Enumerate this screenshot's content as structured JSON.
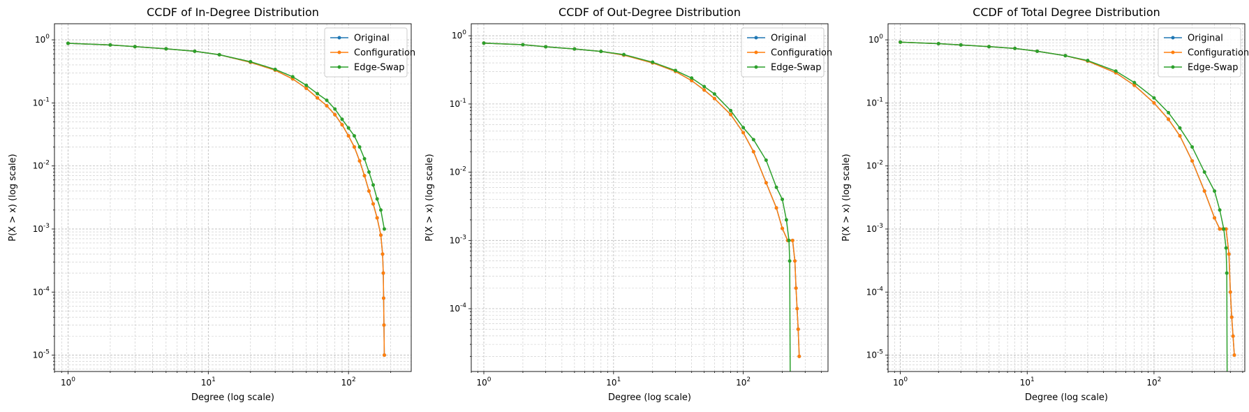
{
  "figure": {
    "panels": [
      {
        "title": "CCDF of In-Degree Distribution",
        "xlabel": "Degree (log scale)",
        "ylabel": "P(X > x) (log scale)"
      },
      {
        "title": "CCDF of Out-Degree Distribution",
        "xlabel": "Degree (log scale)",
        "ylabel": "P(X > x) (log scale)"
      },
      {
        "title": "CCDF of Total Degree Distribution",
        "xlabel": "Degree (log scale)",
        "ylabel": "P(X > x) (log scale)"
      }
    ]
  },
  "colors": {
    "Original": "#1f77b4",
    "Configuration": "#ff7f0e",
    "Edge-Swap": "#2ca02c",
    "grid": "#b0b0b0"
  },
  "chart_data": [
    {
      "type": "line",
      "title": "CCDF of In-Degree Distribution",
      "xlabel": "Degree (log scale)",
      "ylabel": "P(X > x) (log scale)",
      "xscale": "log",
      "yscale": "log",
      "xlim": [
        0.8,
        280
      ],
      "ylim": [
        5.5e-06,
        1.8
      ],
      "xticks": [
        1,
        10,
        100
      ],
      "yticks": [
        1e-05,
        0.0001,
        0.001,
        0.01,
        0.1,
        1
      ],
      "grid": true,
      "legend": "top-right",
      "series": [
        {
          "name": "Original",
          "x": [
            1,
            2,
            3,
            5,
            8,
            12,
            20,
            30,
            40,
            50,
            60,
            70,
            80,
            90,
            100,
            110,
            120,
            130,
            140,
            150,
            160,
            170,
            175,
            177,
            178,
            179,
            180
          ],
          "y": [
            0.88,
            0.83,
            0.78,
            0.72,
            0.66,
            0.58,
            0.44,
            0.33,
            0.24,
            0.17,
            0.12,
            0.09,
            0.065,
            0.045,
            0.03,
            0.02,
            0.012,
            0.007,
            0.004,
            0.0025,
            0.0015,
            0.0008,
            0.0004,
            0.0002,
            8e-05,
            3e-05,
            1e-05
          ]
        },
        {
          "name": "Configuration",
          "x": [
            1,
            2,
            3,
            5,
            8,
            12,
            20,
            30,
            40,
            50,
            60,
            70,
            80,
            90,
            100,
            110,
            120,
            130,
            140,
            150,
            160,
            170,
            175,
            177,
            178,
            179,
            180
          ],
          "y": [
            0.88,
            0.83,
            0.78,
            0.72,
            0.66,
            0.58,
            0.44,
            0.33,
            0.24,
            0.17,
            0.12,
            0.09,
            0.065,
            0.045,
            0.03,
            0.02,
            0.012,
            0.007,
            0.004,
            0.0025,
            0.0015,
            0.0008,
            0.0004,
            0.0002,
            8e-05,
            3e-05,
            1e-05
          ]
        },
        {
          "name": "Edge-Swap",
          "x": [
            1,
            2,
            3,
            5,
            8,
            12,
            20,
            30,
            40,
            50,
            60,
            70,
            80,
            90,
            100,
            110,
            120,
            130,
            140,
            150,
            160,
            170,
            180
          ],
          "y": [
            0.88,
            0.83,
            0.78,
            0.72,
            0.66,
            0.58,
            0.45,
            0.34,
            0.26,
            0.19,
            0.14,
            0.11,
            0.08,
            0.055,
            0.04,
            0.03,
            0.02,
            0.013,
            0.008,
            0.005,
            0.003,
            0.002,
            0.001
          ]
        }
      ]
    },
    {
      "type": "line",
      "title": "CCDF of Out-Degree Distribution",
      "xlabel": "Degree (log scale)",
      "ylabel": "P(X > x) (log scale)",
      "xscale": "log",
      "yscale": "log",
      "xlim": [
        0.8,
        450
      ],
      "ylim": [
        1.2e-05,
        1.5
      ],
      "xticks": [
        1,
        10,
        100
      ],
      "yticks": [
        0.0001,
        0.001,
        0.01,
        0.1,
        1
      ],
      "grid": true,
      "legend": "top-right",
      "series": [
        {
          "name": "Original",
          "x": [
            1,
            2,
            3,
            5,
            8,
            12,
            20,
            30,
            40,
            50,
            60,
            80,
            100,
            120,
            150,
            180,
            200,
            220,
            240,
            250,
            255,
            260,
            265,
            270
          ],
          "y": [
            0.78,
            0.74,
            0.69,
            0.64,
            0.59,
            0.52,
            0.4,
            0.3,
            0.22,
            0.16,
            0.12,
            0.07,
            0.038,
            0.02,
            0.007,
            0.003,
            0.0015,
            0.001,
            0.001,
            0.0005,
            0.0002,
            0.0001,
            5e-05,
            2e-05
          ]
        },
        {
          "name": "Configuration",
          "x": [
            1,
            2,
            3,
            5,
            8,
            12,
            20,
            30,
            40,
            50,
            60,
            80,
            100,
            120,
            150,
            180,
            200,
            220,
            240,
            250,
            255,
            260,
            265,
            270
          ],
          "y": [
            0.78,
            0.74,
            0.69,
            0.64,
            0.59,
            0.52,
            0.4,
            0.3,
            0.22,
            0.16,
            0.12,
            0.07,
            0.038,
            0.02,
            0.007,
            0.003,
            0.0015,
            0.001,
            0.001,
            0.0005,
            0.0002,
            0.0001,
            5e-05,
            2e-05
          ]
        },
        {
          "name": "Edge-Swap",
          "x": [
            1,
            2,
            3,
            5,
            8,
            12,
            20,
            30,
            40,
            50,
            60,
            80,
            100,
            120,
            150,
            180,
            200,
            215,
            225,
            228,
            230
          ],
          "y": [
            0.78,
            0.74,
            0.69,
            0.64,
            0.59,
            0.53,
            0.41,
            0.31,
            0.24,
            0.18,
            0.14,
            0.08,
            0.045,
            0.03,
            0.015,
            0.006,
            0.004,
            0.002,
            0.001,
            0.0005,
            1e-05
          ]
        }
      ]
    },
    {
      "type": "line",
      "title": "CCDF of Total Degree Distribution",
      "xlabel": "Degree (log scale)",
      "ylabel": "P(X > x) (log scale)",
      "xscale": "log",
      "yscale": "log",
      "xlim": [
        0.8,
        520
      ],
      "ylim": [
        5.5e-06,
        1.8
      ],
      "xticks": [
        1,
        10,
        100
      ],
      "yticks": [
        1e-05,
        0.0001,
        0.001,
        0.01,
        0.1,
        1
      ],
      "grid": true,
      "legend": "top-right",
      "series": [
        {
          "name": "Original",
          "x": [
            1,
            2,
            3,
            5,
            8,
            12,
            20,
            30,
            50,
            70,
            100,
            130,
            160,
            200,
            250,
            300,
            330,
            350,
            370,
            390,
            400,
            410,
            420,
            430
          ],
          "y": [
            0.92,
            0.87,
            0.83,
            0.78,
            0.73,
            0.66,
            0.56,
            0.46,
            0.3,
            0.19,
            0.1,
            0.055,
            0.03,
            0.012,
            0.004,
            0.0015,
            0.001,
            0.001,
            0.001,
            0.0004,
            0.0001,
            4e-05,
            2e-05,
            1e-05
          ]
        },
        {
          "name": "Configuration",
          "x": [
            1,
            2,
            3,
            5,
            8,
            12,
            20,
            30,
            50,
            70,
            100,
            130,
            160,
            200,
            250,
            300,
            330,
            350,
            370,
            390,
            400,
            410,
            420,
            430
          ],
          "y": [
            0.92,
            0.87,
            0.83,
            0.78,
            0.73,
            0.66,
            0.56,
            0.46,
            0.3,
            0.19,
            0.1,
            0.055,
            0.03,
            0.012,
            0.004,
            0.0015,
            0.001,
            0.001,
            0.001,
            0.0004,
            0.0001,
            4e-05,
            2e-05,
            1e-05
          ]
        },
        {
          "name": "Edge-Swap",
          "x": [
            1,
            2,
            3,
            5,
            8,
            12,
            20,
            30,
            50,
            70,
            100,
            130,
            160,
            200,
            250,
            300,
            330,
            355,
            370,
            375,
            378
          ],
          "y": [
            0.92,
            0.87,
            0.83,
            0.78,
            0.73,
            0.66,
            0.56,
            0.47,
            0.32,
            0.21,
            0.12,
            0.07,
            0.04,
            0.02,
            0.008,
            0.004,
            0.002,
            0.001,
            0.0005,
            0.0002,
            1e-06
          ]
        }
      ]
    }
  ]
}
